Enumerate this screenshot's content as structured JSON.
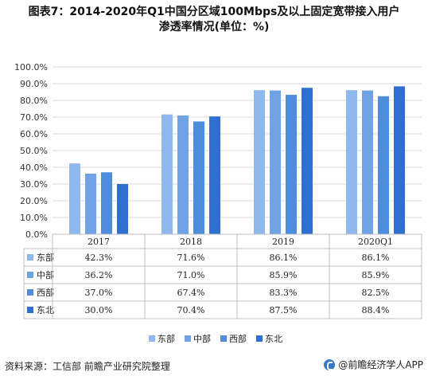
{
  "title_line1": "图表7：2014-2020年Q1中国分区域100Mbps及以上固定宽带接入用户",
  "title_line2": "渗透率情况(单位：%)",
  "chart_data": {
    "type": "bar",
    "categories": [
      "2017",
      "2018",
      "2019",
      "2020Q1"
    ],
    "series": [
      {
        "name": "东部",
        "values": [
          42.3,
          71.6,
          86.1,
          86.1
        ],
        "labels": [
          "42.3%",
          "71.6%",
          "86.1%",
          "86.1%"
        ],
        "color": "#8fb8ec"
      },
      {
        "name": "中部",
        "values": [
          36.2,
          71.0,
          85.9,
          85.9
        ],
        "labels": [
          "36.2%",
          "71.0%",
          "85.9%",
          "85.9%"
        ],
        "color": "#6fa3e6"
      },
      {
        "name": "西部",
        "values": [
          37.0,
          67.4,
          83.3,
          82.5
        ],
        "labels": [
          "37.0%",
          "67.4%",
          "83.3%",
          "82.5%"
        ],
        "color": "#4e8cdc"
      },
      {
        "name": "东北",
        "values": [
          30.0,
          70.4,
          87.5,
          88.4
        ],
        "labels": [
          "30.0%",
          "70.4%",
          "87.5%",
          "88.4%"
        ],
        "color": "#2f6fd0"
      }
    ],
    "yticks": [
      "0.0%",
      "10.0%",
      "20.0%",
      "30.0%",
      "40.0%",
      "50.0%",
      "60.0%",
      "70.0%",
      "80.0%",
      "90.0%",
      "100.0%"
    ],
    "ylim": [
      0,
      100
    ],
    "grid": true,
    "legend_position": "bottom",
    "data_table": true
  },
  "source_text": "资料来源：工信部 前瞻产业研究院整理",
  "brand_text": "@前瞻经济学人APP"
}
